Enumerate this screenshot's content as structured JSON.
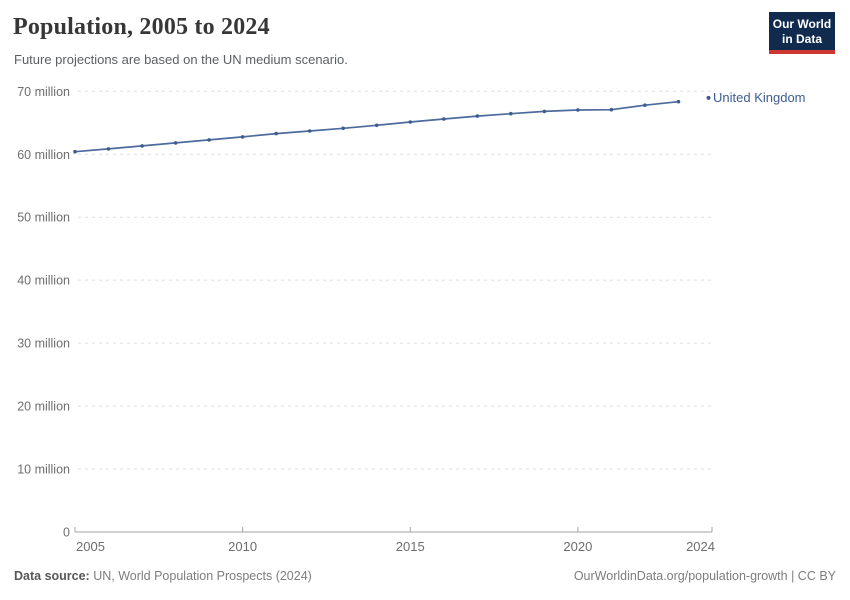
{
  "header": {
    "title": "Population, 2005 to 2024",
    "subtitle": "Future projections are based on the UN medium scenario.",
    "logo": {
      "line1": "Our World",
      "line2": "in Data"
    }
  },
  "legend": {
    "label": "United Kingdom"
  },
  "footer": {
    "source_label": "Data source:",
    "source_value": " UN, World Population Prospects (2024)",
    "right_text": "OurWorldinData.org/population-growth | CC BY"
  },
  "colors": {
    "line": "#4c6a9c",
    "marker": "#3d5c8f",
    "legend_text": "#3d5c8f",
    "grid": "#dddddd",
    "axis": "#a3a3a3",
    "tick_text": "#6e6e6e",
    "logo_bg": "#112b4e",
    "logo_red": "#cd3731"
  },
  "chart_data": {
    "type": "line",
    "title": "Population, 2005 to 2024",
    "xlabel": "",
    "ylabel": "",
    "x": [
      2005,
      2006,
      2007,
      2008,
      2009,
      2010,
      2011,
      2012,
      2013,
      2014,
      2015,
      2016,
      2017,
      2018,
      2019,
      2020,
      2021,
      2022,
      2023,
      2024
    ],
    "series": [
      {
        "name": "United Kingdom",
        "values_millions": [
          60.41,
          60.85,
          61.32,
          61.81,
          62.28,
          62.76,
          63.28,
          63.7,
          64.13,
          64.6,
          65.12,
          65.6,
          66.06,
          66.44,
          66.8,
          67.03,
          67.08,
          67.79,
          68.35,
          68.95
        ]
      }
    ],
    "projection_years": [
      2024
    ],
    "xlim": [
      2005,
      2024
    ],
    "ylim_millions": [
      0,
      70
    ],
    "xticks": [
      2005,
      2010,
      2015,
      2020,
      2024
    ],
    "yticks": [
      {
        "value": 0,
        "label": "0"
      },
      {
        "value": 10,
        "label": "10 million"
      },
      {
        "value": 20,
        "label": "20 million"
      },
      {
        "value": 30,
        "label": "30 million"
      },
      {
        "value": 40,
        "label": "40 million"
      },
      {
        "value": 50,
        "label": "50 million"
      },
      {
        "value": 60,
        "label": "60 million"
      },
      {
        "value": 70,
        "label": "70 million"
      }
    ],
    "grid": "horizontal-dashed",
    "legend_position": "right-of-line-end"
  }
}
